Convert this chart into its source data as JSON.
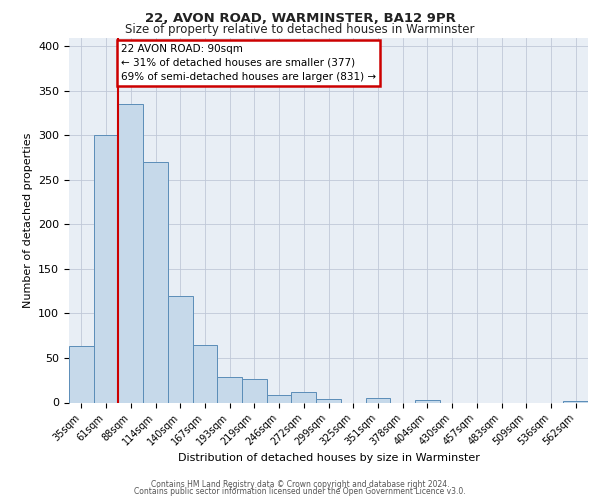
{
  "title1": "22, AVON ROAD, WARMINSTER, BA12 9PR",
  "title2": "Size of property relative to detached houses in Warminster",
  "xlabel": "Distribution of detached houses by size in Warminster",
  "ylabel": "Number of detached properties",
  "bar_labels": [
    "35sqm",
    "61sqm",
    "88sqm",
    "114sqm",
    "140sqm",
    "167sqm",
    "193sqm",
    "219sqm",
    "246sqm",
    "272sqm",
    "299sqm",
    "325sqm",
    "351sqm",
    "378sqm",
    "404sqm",
    "430sqm",
    "457sqm",
    "483sqm",
    "509sqm",
    "536sqm",
    "562sqm"
  ],
  "bar_values": [
    63,
    300,
    335,
    270,
    120,
    65,
    29,
    26,
    8,
    12,
    4,
    0,
    5,
    0,
    3,
    0,
    0,
    0,
    0,
    0,
    2
  ],
  "bar_color": "#c6d9ea",
  "bar_edge_color": "#5b8db8",
  "annotation_title": "22 AVON ROAD: 90sqm",
  "annotation_line1": "← 31% of detached houses are smaller (377)",
  "annotation_line2": "69% of semi-detached houses are larger (831) →",
  "annotation_box_facecolor": "#ffffff",
  "annotation_box_edgecolor": "#cc0000",
  "red_line_color": "#cc0000",
  "red_line_x": 1.5,
  "ylim": [
    0,
    410
  ],
  "yticks": [
    0,
    50,
    100,
    150,
    200,
    250,
    300,
    350,
    400
  ],
  "grid_color": "#c0c8d8",
  "bg_color": "#e8eef5",
  "footer1": "Contains HM Land Registry data © Crown copyright and database right 2024.",
  "footer2": "Contains public sector information licensed under the Open Government Licence v3.0."
}
